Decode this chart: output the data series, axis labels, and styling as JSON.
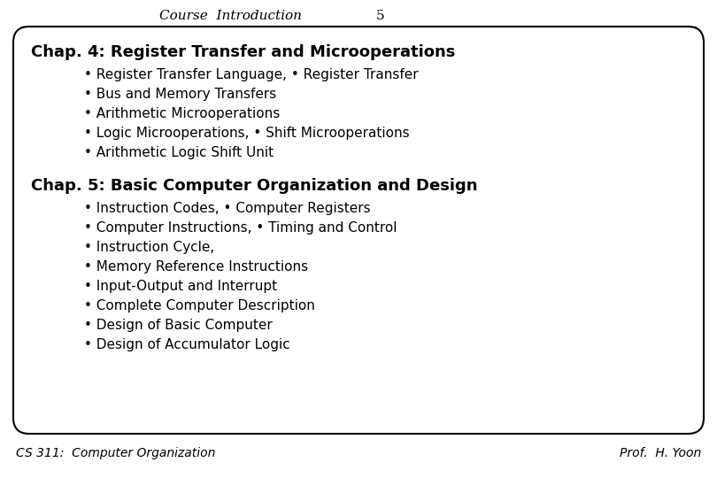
{
  "bg_color": "#ffffff",
  "header_text": "Course  Introduction",
  "header_number": "5",
  "footer_left": "CS 311:  Computer Organization",
  "footer_right": "Prof.  H. Yoon",
  "chap4_title": "Chap. 4: Register Transfer and Microoperations",
  "chap4_bullets": [
    "• Register Transfer Language, • Register Transfer",
    "• Bus and Memory Transfers",
    "• Arithmetic Microoperations",
    "• Logic Microoperations, • Shift Microoperations",
    "• Arithmetic Logic Shift Unit"
  ],
  "chap5_title": "Chap. 5: Basic Computer Organization and Design",
  "chap5_bullets": [
    "• Instruction Codes, • Computer Registers",
    "• Computer Instructions, • Timing and Control",
    "• Instruction Cycle,",
    "• Memory Reference Instructions",
    "• Input-Output and Interrupt",
    "• Complete Computer Description",
    "• Design of Basic Computer",
    "• Design of Accumulator Logic"
  ],
  "header_fontsize": 11,
  "footer_fontsize": 10,
  "chap_title_fontsize": 13,
  "bullet_fontsize": 11,
  "box_facecolor": "#f0f0f0",
  "box_edgecolor": "#000000",
  "text_color": "#000000"
}
